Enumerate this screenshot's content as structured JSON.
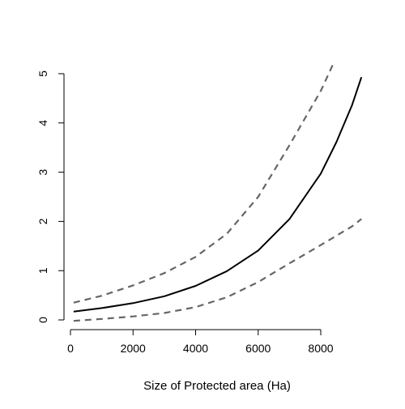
{
  "chart_data": {
    "type": "line",
    "title": "",
    "xlabel": "Size of Protected area (Ha)",
    "ylabel": "",
    "xlim": [
      0,
      9300
    ],
    "ylim": [
      0,
      5
    ],
    "x_ticks": [
      0,
      2000,
      4000,
      6000,
      8000
    ],
    "y_ticks": [
      0,
      1,
      2,
      3,
      4,
      5
    ],
    "grid": false,
    "legend": "none",
    "series": [
      {
        "role": "fit",
        "style": "solid",
        "color": "#000000",
        "x": [
          100,
          1000,
          2000,
          3000,
          4000,
          5000,
          6000,
          7000,
          8000,
          8500,
          9000,
          9300
        ],
        "y": [
          0.17,
          0.24,
          0.34,
          0.48,
          0.69,
          0.99,
          1.41,
          2.05,
          2.97,
          3.61,
          4.36,
          4.93
        ]
      },
      {
        "role": "upper-bound",
        "style": "dashed",
        "color": "#666666",
        "x": [
          100,
          1000,
          2000,
          3000,
          4000,
          5000,
          6000,
          7000,
          8000,
          8400
        ],
        "y": [
          0.35,
          0.49,
          0.7,
          0.95,
          1.28,
          1.75,
          2.5,
          3.55,
          4.65,
          5.2
        ]
      },
      {
        "role": "lower-bound",
        "style": "dashed",
        "color": "#666666",
        "x": [
          100,
          1000,
          2000,
          3000,
          4000,
          5000,
          6000,
          7000,
          8000,
          9000,
          9300
        ],
        "y": [
          -0.02,
          0.02,
          0.07,
          0.14,
          0.26,
          0.46,
          0.77,
          1.15,
          1.52,
          1.9,
          2.05
        ]
      }
    ]
  }
}
